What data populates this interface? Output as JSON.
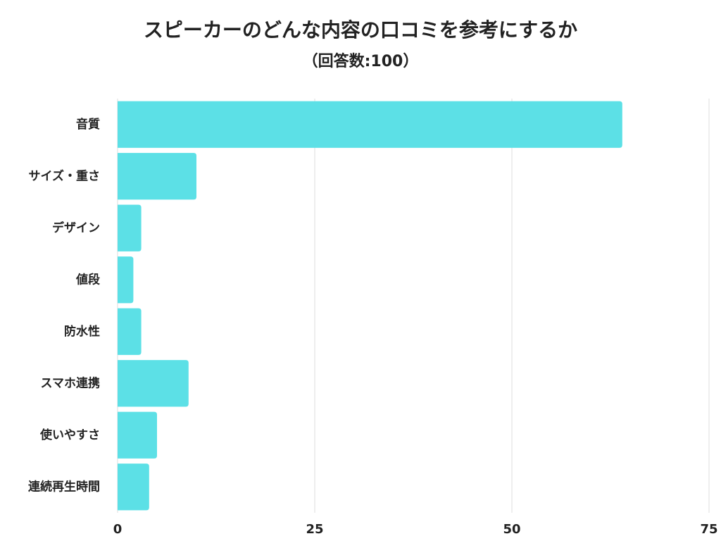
{
  "chart_data": {
    "type": "bar",
    "orientation": "horizontal",
    "title": "スピーカーのどんな内容の口コミを参考にするか",
    "subtitle": "（回答数:100）",
    "categories": [
      "音質",
      "サイズ・重さ",
      "デザイン",
      "値段",
      "防水性",
      "スマホ連携",
      "使いやすさ",
      "連続再生時間"
    ],
    "values": [
      64,
      10,
      3,
      2,
      3,
      9,
      5,
      4
    ],
    "color": "#5ce0e6",
    "xlim": [
      0,
      75
    ],
    "xticks": [
      0,
      25,
      50,
      75
    ],
    "grid": true
  }
}
